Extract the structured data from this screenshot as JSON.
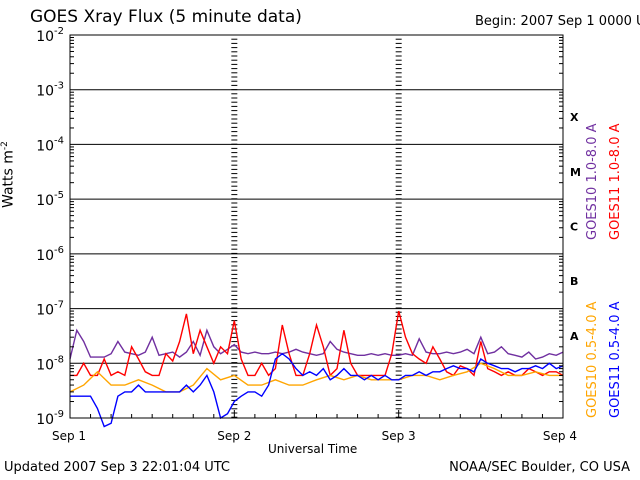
{
  "title": "GOES Xray Flux (5 minute data)",
  "begin_label": "Begin:",
  "begin_value": "2007 Sep 1 0000 UTC",
  "updated": "Updated 2007 Sep  3 22:01:04 UTC",
  "credit": "NOAA/SEC Boulder, CO USA",
  "colors": {
    "goes10_long": "#7030a0",
    "goes11_long": "#ff0000",
    "goes10_short": "#ffa500",
    "goes11_short": "#0000ff"
  },
  "chart_data": {
    "type": "line",
    "title": "GOES Xray Flux (5 minute data)",
    "xlabel": "Universal Time",
    "ylabel": "Watts m-2",
    "ylabel_main": "Watts m",
    "ylabel_exp": "-2",
    "y_scale": "log",
    "ylim": [
      1e-09,
      0.01
    ],
    "xlim": [
      "2007-09-01T00:00",
      "2007-09-04T00:00"
    ],
    "x_ticks": [
      "Sep 1",
      "Sep 2",
      "Sep 3",
      "Sep 4"
    ],
    "y_ticks": [
      {
        "base": "10",
        "exp": "-2",
        "value": 0.01
      },
      {
        "base": "10",
        "exp": "-3",
        "value": 0.001
      },
      {
        "base": "10",
        "exp": "-4",
        "value": 0.0001
      },
      {
        "base": "10",
        "exp": "-5",
        "value": 1e-05
      },
      {
        "base": "10",
        "exp": "-6",
        "value": 1e-06
      },
      {
        "base": "10",
        "exp": "-7",
        "value": 1e-07
      },
      {
        "base": "10",
        "exp": "-8",
        "value": 1e-08
      },
      {
        "base": "10",
        "exp": "-9",
        "value": 1e-09
      }
    ],
    "flare_classes": [
      {
        "label": "X",
        "value": 0.000316
      },
      {
        "label": "M",
        "value": 3.16e-05
      },
      {
        "label": "C",
        "value": 3.16e-06
      },
      {
        "label": "B",
        "value": 3.16e-07
      },
      {
        "label": "A",
        "value": 3.16e-08
      }
    ],
    "legend": [
      {
        "label": "GOES10 1.0-8.0 A",
        "color": "#7030a0",
        "position": "right-upper-1"
      },
      {
        "label": "GOES11 1.0-8.0 A",
        "color": "#ff0000",
        "position": "right-upper-2"
      },
      {
        "label": "GOES10 0.5-4.0 A",
        "color": "#ffa500",
        "position": "right-lower-1"
      },
      {
        "label": "GOES11 0.5-4.0 A",
        "color": "#0000ff",
        "position": "right-lower-2"
      }
    ],
    "grid": true,
    "series": [
      {
        "name": "GOES10 1.0-8.0 A",
        "color": "#7030a0",
        "x_hours": [
          0,
          1,
          2,
          3,
          4,
          5,
          6,
          7,
          8,
          9,
          10,
          11,
          12,
          13,
          14,
          15,
          16,
          17,
          18,
          19,
          20,
          21,
          22,
          23,
          24,
          25,
          26,
          27,
          28,
          29,
          30,
          31,
          32,
          33,
          34,
          35,
          36,
          37,
          38,
          39,
          40,
          41,
          42,
          43,
          44,
          45,
          46,
          47,
          48,
          49,
          50,
          51,
          52,
          53,
          54,
          55,
          56,
          57,
          58,
          59,
          60,
          61,
          62,
          63,
          64,
          65,
          66,
          67,
          68,
          69,
          70,
          71,
          72
        ],
        "values": [
          1.2e-08,
          4e-08,
          2.5e-08,
          1.3e-08,
          1.3e-08,
          1.3e-08,
          1.5e-08,
          2.5e-08,
          1.6e-08,
          1.5e-08,
          1.4e-08,
          1.6e-08,
          3e-08,
          1.4e-08,
          1.5e-08,
          1.6e-08,
          1.3e-08,
          1.6e-08,
          2.5e-08,
          1.4e-08,
          4e-08,
          2e-08,
          1.5e-08,
          1.8e-08,
          2.2e-08,
          1.6e-08,
          1.5e-08,
          1.6e-08,
          1.5e-08,
          1.5e-08,
          1.6e-08,
          1.5e-08,
          1.6e-08,
          1.8e-08,
          1.6e-08,
          1.5e-08,
          1.4e-08,
          1.5e-08,
          2.5e-08,
          1.8e-08,
          1.6e-08,
          1.5e-08,
          1.4e-08,
          1.4e-08,
          1.5e-08,
          1.4e-08,
          1.5e-08,
          1.4e-08,
          1.4e-08,
          1.5e-08,
          1.4e-08,
          2.8e-08,
          1.6e-08,
          1.5e-08,
          1.5e-08,
          1.6e-08,
          1.5e-08,
          1.6e-08,
          1.8e-08,
          1.5e-08,
          3e-08,
          1.5e-08,
          1.6e-08,
          2e-08,
          1.5e-08,
          1.4e-08,
          1.3e-08,
          1.6e-08,
          1.2e-08,
          1.3e-08,
          1.5e-08,
          1.4e-08,
          1.6e-08
        ]
      },
      {
        "name": "GOES11 1.0-8.0 A",
        "color": "#ff0000",
        "x_hours": [
          0,
          1,
          2,
          3,
          4,
          5,
          6,
          7,
          8,
          9,
          10,
          11,
          12,
          13,
          14,
          15,
          16,
          17,
          18,
          19,
          20,
          21,
          22,
          23,
          24,
          25,
          26,
          27,
          28,
          29,
          30,
          31,
          32,
          33,
          34,
          35,
          36,
          37,
          38,
          39,
          40,
          41,
          42,
          43,
          44,
          45,
          46,
          47,
          48,
          49,
          50,
          51,
          52,
          53,
          54,
          55,
          56,
          57,
          58,
          59,
          60,
          61,
          62,
          63,
          64,
          65,
          66,
          67,
          68,
          69,
          70,
          71,
          72
        ],
        "values": [
          6e-09,
          6e-09,
          1e-08,
          6e-09,
          6e-09,
          1.2e-08,
          6e-09,
          7e-09,
          6e-09,
          2e-08,
          1.2e-08,
          7e-09,
          6e-09,
          6e-09,
          1.5e-08,
          1.1e-08,
          2.5e-08,
          8e-08,
          1.5e-08,
          4e-08,
          2e-08,
          1e-08,
          2e-08,
          1.5e-08,
          6e-08,
          1.2e-08,
          6e-09,
          6e-09,
          1e-08,
          6e-09,
          8e-09,
          5e-08,
          1.5e-08,
          6e-09,
          6e-09,
          1.5e-08,
          5e-08,
          2e-08,
          6e-09,
          8e-09,
          4e-08,
          1e-08,
          6e-09,
          6e-09,
          6e-09,
          6e-09,
          6e-09,
          1.5e-08,
          9e-08,
          3e-08,
          1.5e-08,
          1.2e-08,
          1e-08,
          2e-08,
          1.2e-08,
          7e-09,
          6e-09,
          9e-09,
          8e-09,
          6e-09,
          2.5e-08,
          8e-09,
          7e-09,
          6e-09,
          7e-09,
          6e-09,
          6e-09,
          8e-09,
          7e-09,
          6e-09,
          7e-09,
          7e-09,
          6e-09
        ]
      },
      {
        "name": "GOES10 0.5-4.0 A",
        "color": "#ffa500",
        "x_hours": [
          0,
          2,
          4,
          6,
          8,
          10,
          12,
          14,
          16,
          18,
          20,
          22,
          24,
          26,
          28,
          30,
          32,
          34,
          36,
          38,
          40,
          42,
          44,
          46,
          48,
          50,
          52,
          54,
          56,
          58,
          60,
          62,
          64,
          66,
          68,
          70,
          72
        ],
        "values": [
          3e-09,
          4e-09,
          7e-09,
          4e-09,
          4e-09,
          5e-09,
          4e-09,
          3e-09,
          3e-09,
          4e-09,
          8e-09,
          5e-09,
          6e-09,
          4e-09,
          4e-09,
          5e-09,
          4e-09,
          4e-09,
          5e-09,
          6e-09,
          5e-09,
          6e-09,
          5e-09,
          5e-09,
          5e-09,
          6e-09,
          6e-09,
          5e-09,
          6e-09,
          7e-09,
          1e-08,
          8e-09,
          6e-09,
          6e-09,
          7e-09,
          6e-09,
          6e-09
        ]
      },
      {
        "name": "GOES11 0.5-4.0 A",
        "color": "#0000ff",
        "x_hours": [
          0,
          1,
          2,
          3,
          4,
          5,
          6,
          7,
          8,
          9,
          10,
          11,
          12,
          13,
          14,
          15,
          16,
          17,
          18,
          19,
          20,
          21,
          22,
          23,
          24,
          25,
          26,
          27,
          28,
          29,
          30,
          31,
          32,
          33,
          34,
          35,
          36,
          37,
          38,
          39,
          40,
          41,
          42,
          43,
          44,
          45,
          46,
          47,
          48,
          49,
          50,
          51,
          52,
          53,
          54,
          55,
          56,
          57,
          58,
          59,
          60,
          61,
          62,
          63,
          64,
          65,
          66,
          67,
          68,
          69,
          70,
          71,
          72
        ],
        "values": [
          2.5e-09,
          2.5e-09,
          2.5e-09,
          2.5e-09,
          1.5e-09,
          7e-10,
          8e-10,
          2.5e-09,
          3e-09,
          3e-09,
          4e-09,
          3e-09,
          3e-09,
          3e-09,
          3e-09,
          3e-09,
          3e-09,
          4e-09,
          3e-09,
          4e-09,
          6e-09,
          3e-09,
          1e-09,
          1.2e-09,
          2e-09,
          2.5e-09,
          3e-09,
          3e-09,
          2.5e-09,
          4e-09,
          1.2e-08,
          1.5e-08,
          1.2e-08,
          8e-09,
          6e-09,
          7e-09,
          6e-09,
          8e-09,
          5e-09,
          6e-09,
          8e-09,
          6e-09,
          6e-09,
          5e-09,
          6e-09,
          5e-09,
          6e-09,
          5e-09,
          5e-09,
          6e-09,
          6e-09,
          7e-09,
          6e-09,
          7e-09,
          7e-09,
          8e-09,
          9e-09,
          8e-09,
          8e-09,
          7e-09,
          1.2e-08,
          1e-08,
          9e-09,
          8e-09,
          8e-09,
          7e-09,
          8e-09,
          8e-09,
          9e-09,
          8e-09,
          1e-08,
          8e-09,
          9e-09
        ]
      }
    ]
  }
}
